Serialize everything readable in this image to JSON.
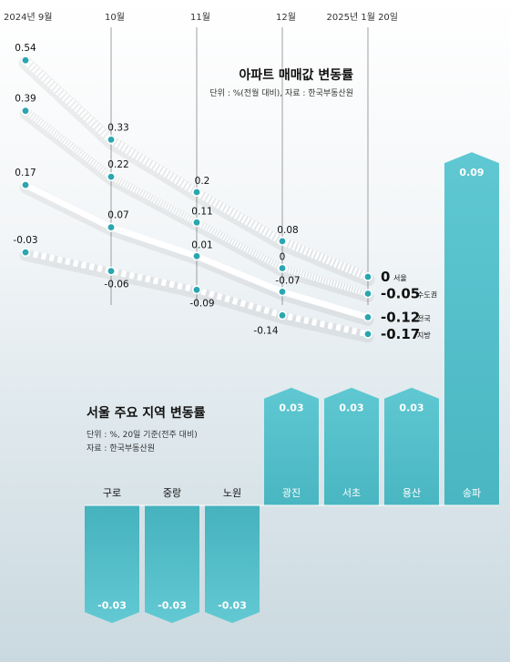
{
  "line_chart": {
    "title": "아파트 매매값 변동률",
    "note": "단위 : %(전월 대비), 자료 : 한국부동산원",
    "months": [
      "2024년 9월",
      "10월",
      "11월",
      "12월",
      "2025년 1월 20일"
    ]
  },
  "bar_chart": {
    "title": "서울 주요 지역 변동률",
    "note1": "단위 : %, 20일 기준(전주 대비)",
    "note2": "자료 : 한국부동산원"
  },
  "chart_data": [
    {
      "type": "line",
      "title": "아파트 매매값 변동률",
      "x": [
        "2024년 9월",
        "10월",
        "11월",
        "12월",
        "2025년 1월 20일"
      ],
      "series": [
        {
          "name": "서울",
          "values": [
            0.54,
            0.33,
            0.2,
            0.08,
            0
          ],
          "labels": [
            "0.54",
            "0.33",
            "0.2",
            "0.08",
            "0"
          ]
        },
        {
          "name": "수도권",
          "values": [
            0.39,
            0.22,
            0.11,
            0,
            -0.05
          ],
          "labels": [
            "0.39",
            "0.22",
            "0.11",
            "0",
            "-0.05"
          ]
        },
        {
          "name": "전국",
          "values": [
            0.17,
            0.07,
            0.01,
            -0.07,
            -0.12
          ],
          "labels": [
            "0.17",
            "0.07",
            "0.01",
            "-0.07",
            "-0.12"
          ]
        },
        {
          "name": "지방",
          "values": [
            -0.03,
            -0.06,
            -0.09,
            -0.14,
            -0.17
          ],
          "labels": [
            "-0.03",
            "-0.06",
            "-0.09",
            "-0.14",
            "-0.17"
          ]
        }
      ],
      "colors": {
        "line": "#ffffff",
        "marker": "#2aa6b0",
        "marker_border": "#ffffff"
      }
    },
    {
      "type": "bar",
      "title": "서울 주요 지역 변동률",
      "categories": [
        "구로",
        "중랑",
        "노원",
        "광진",
        "서초",
        "용산",
        "송파"
      ],
      "values": [
        -0.03,
        -0.03,
        -0.03,
        0.03,
        0.03,
        0.03,
        0.09
      ],
      "labels": [
        "-0.03",
        "-0.03",
        "-0.03",
        "0.03",
        "0.03",
        "0.03",
        "0.09"
      ],
      "colors": {
        "bar": "#5cc5cf",
        "bar_dark": "#48b3be"
      }
    }
  ]
}
